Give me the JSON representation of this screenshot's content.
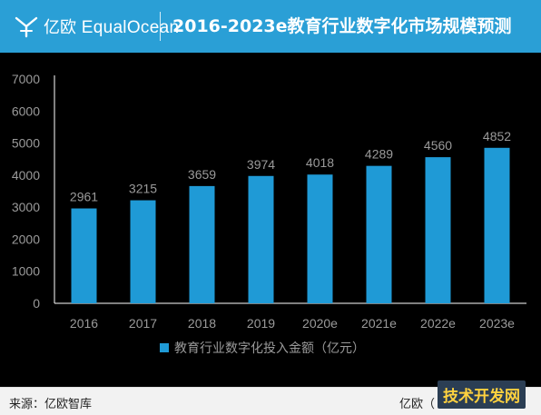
{
  "header": {
    "brand_cn": "亿欧",
    "brand_en": "EqualOcean",
    "title": "2016-2023e教育行业数字化市场规模预测"
  },
  "chart_data": {
    "type": "bar",
    "categories": [
      "2016",
      "2017",
      "2018",
      "2019",
      "2020e",
      "2021e",
      "2022e",
      "2023e"
    ],
    "values": [
      2961,
      3215,
      3659,
      3974,
      4018,
      4289,
      4560,
      4852
    ],
    "series": [
      {
        "name": "教育行业数字化投入金额（亿元）",
        "values": [
          2961,
          3215,
          3659,
          3974,
          4018,
          4289,
          4560,
          4852
        ]
      }
    ],
    "ylim": [
      0,
      7000
    ],
    "yticks": [
      0,
      1000,
      2000,
      3000,
      4000,
      5000,
      6000,
      7000
    ],
    "xlabel": "",
    "ylabel": "",
    "grid": false,
    "legend": "bottom-center",
    "bar_color": "#1f9ad6"
  },
  "footer": {
    "source": "来源：亿欧智库",
    "brand": "亿欧（"
  },
  "watermark": "技术开发网",
  "colors": {
    "header_bg": "#2a9fd6",
    "bar": "#1f9ad6",
    "background": "#000000"
  }
}
